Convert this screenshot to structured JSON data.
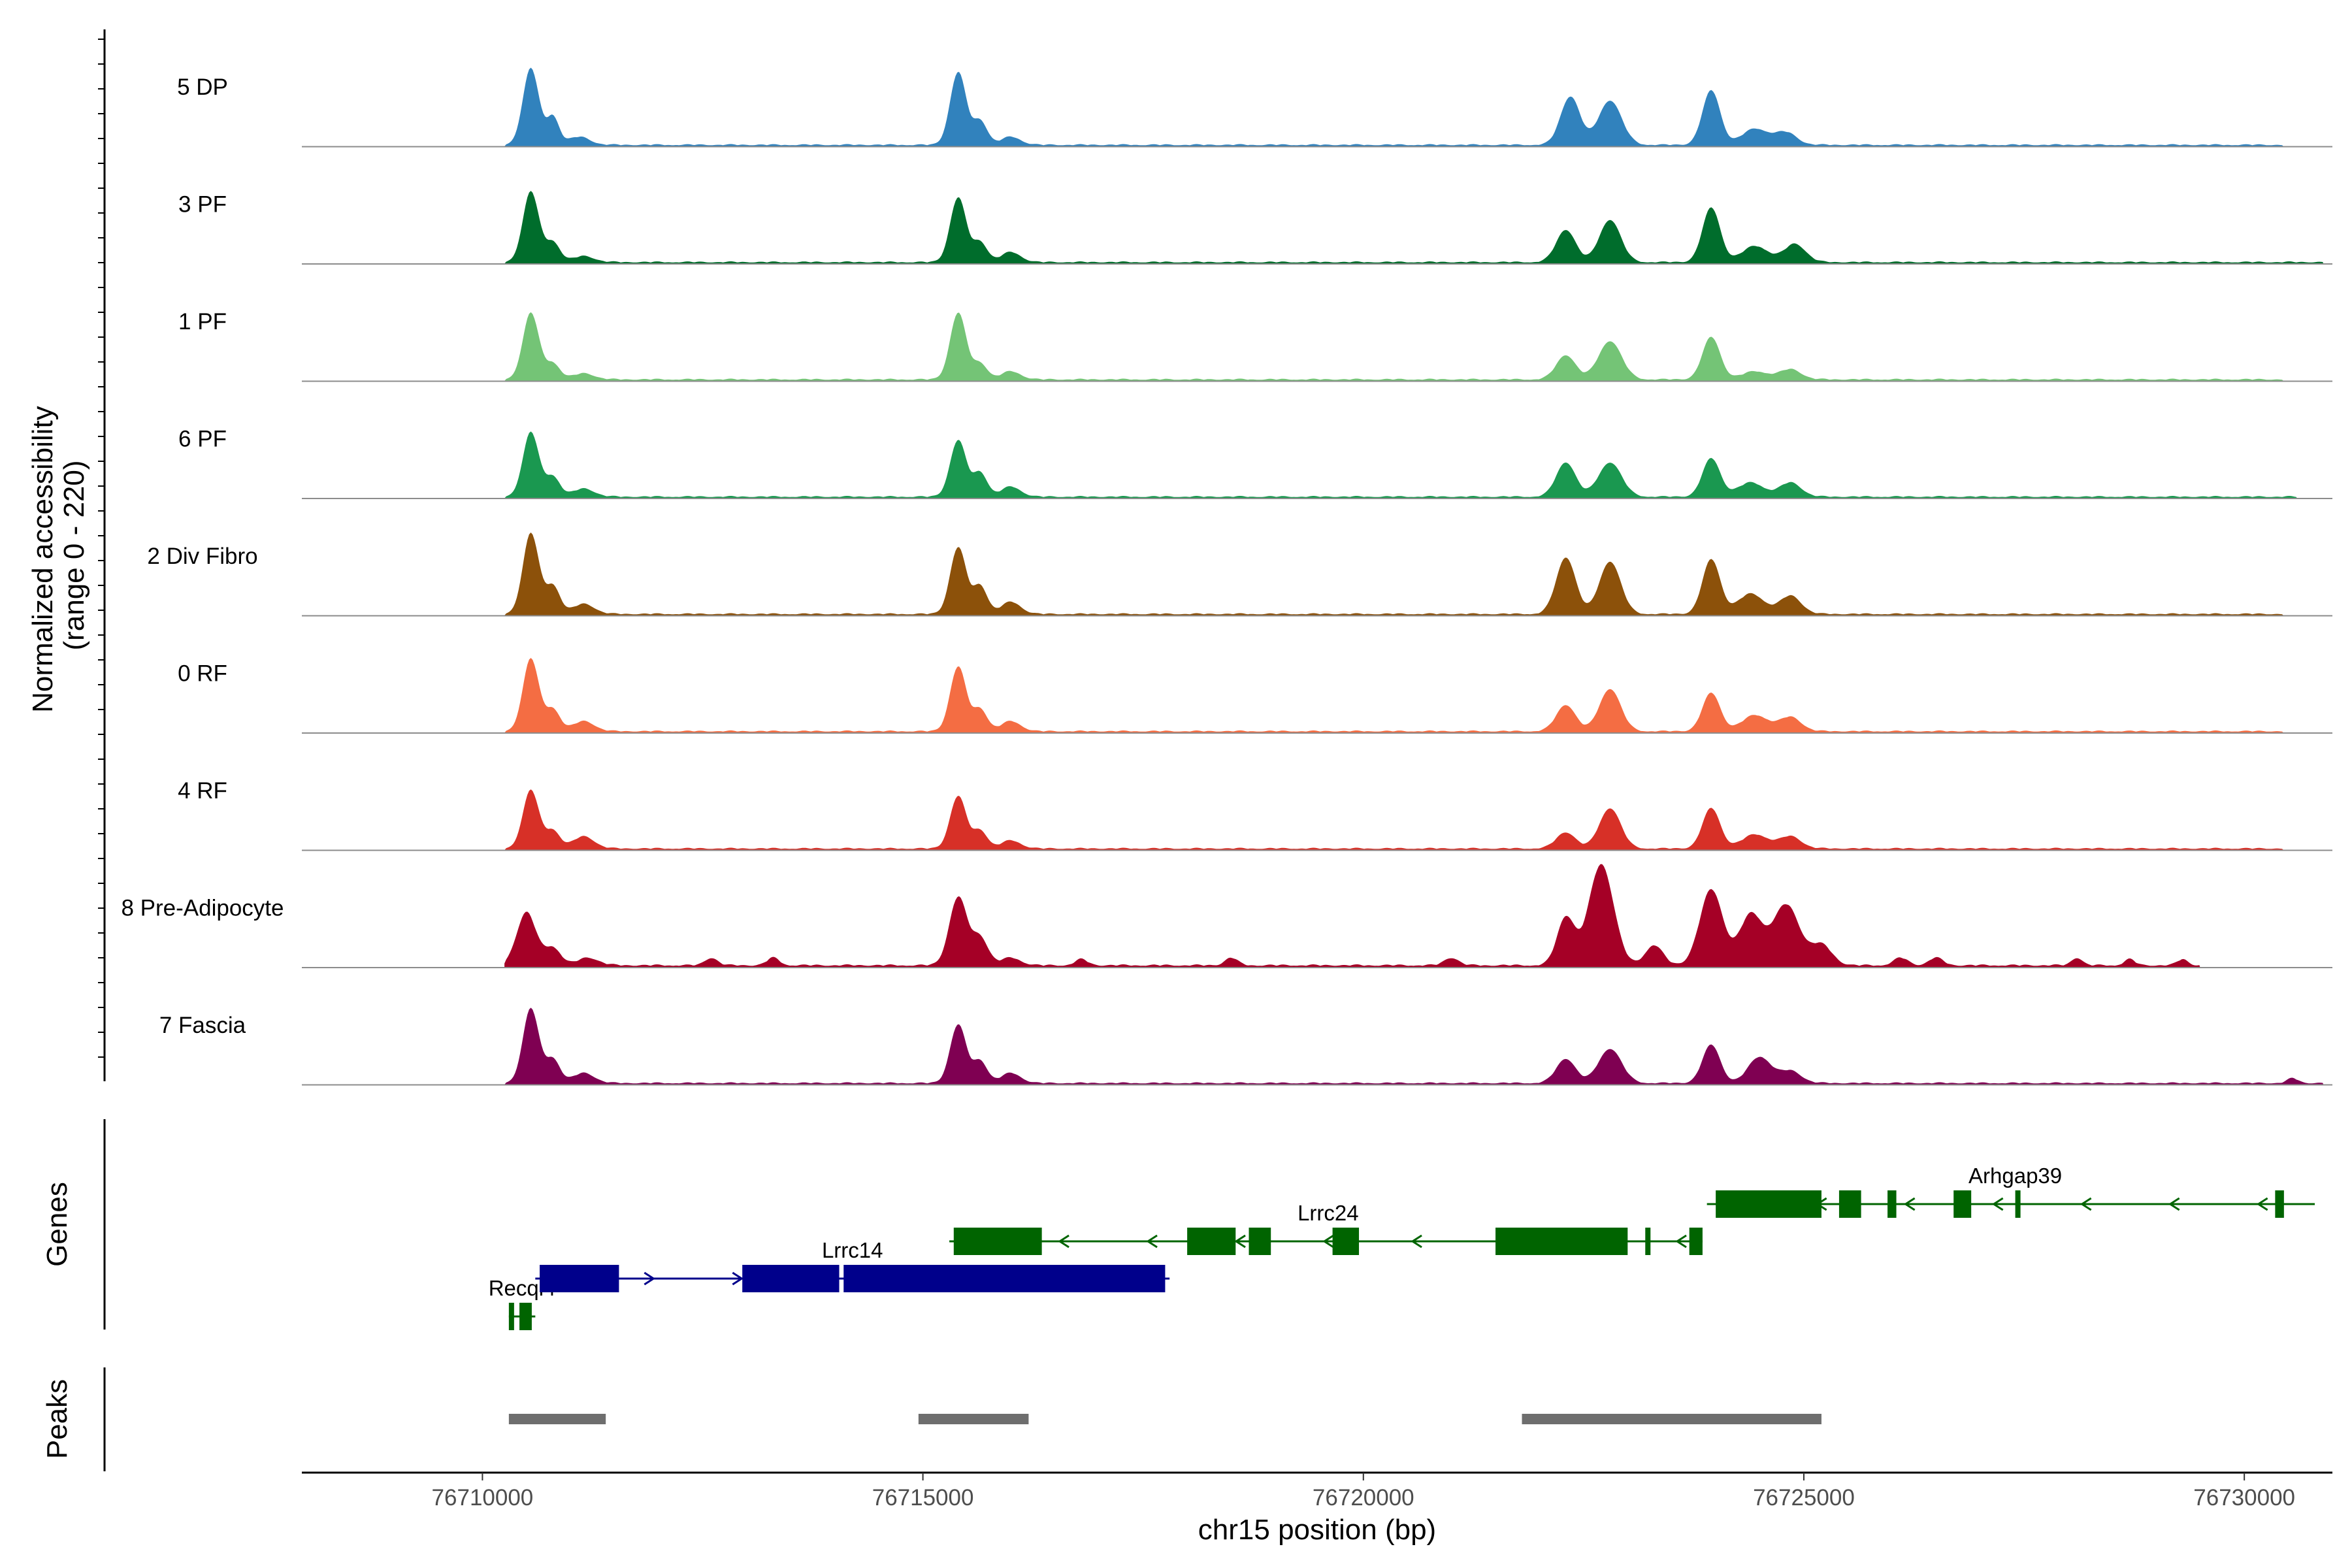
{
  "chart_data": {
    "type": "area",
    "title": "",
    "y_axis_title_line1": "Normalized accessibility",
    "y_axis_title_line2": "(range 0 - 220)",
    "ylim": [
      0,
      220
    ],
    "x_axis_title": "chr15 position (bp)",
    "xlim": [
      76707950,
      76731000
    ],
    "x_ticks": [
      {
        "value": 76710000,
        "label": "76710000"
      },
      {
        "value": 76715000,
        "label": "76715000"
      },
      {
        "value": 76720000,
        "label": "76720000"
      },
      {
        "value": 76725000,
        "label": "76725000"
      },
      {
        "value": 76730000,
        "label": "76730000"
      }
    ],
    "genes_panel_title": "Genes",
    "peaks_panel_title": "Peaks",
    "series": [
      {
        "name": "5 DP",
        "color": "#3182BD",
        "sc": 1.0,
        "end": 76730450,
        "peaks": [
          [
            76710550,
            190,
            90
          ],
          [
            76710800,
            70,
            70
          ],
          [
            76711100,
            20,
            120
          ],
          [
            76715400,
            180,
            90
          ],
          [
            76715650,
            60,
            80
          ],
          [
            76716000,
            20,
            110
          ],
          [
            76722350,
            120,
            110
          ],
          [
            76722800,
            110,
            130
          ],
          [
            76723950,
            135,
            100
          ],
          [
            76724450,
            40,
            150
          ],
          [
            76724800,
            30,
            120
          ]
        ]
      },
      {
        "name": "3 PF",
        "color": "#006D2C",
        "sc": 1.0,
        "end": 76730900,
        "peaks": [
          [
            76710550,
            175,
            90
          ],
          [
            76710800,
            50,
            80
          ],
          [
            76711150,
            15,
            120
          ],
          [
            76715400,
            160,
            90
          ],
          [
            76715650,
            50,
            80
          ],
          [
            76716000,
            25,
            110
          ],
          [
            76722300,
            80,
            110
          ],
          [
            76722800,
            105,
            120
          ],
          [
            76723950,
            135,
            100
          ],
          [
            76724450,
            40,
            150
          ],
          [
            76724900,
            45,
            120
          ]
        ]
      },
      {
        "name": "1 PF",
        "color": "#74C476",
        "sc": 1.0,
        "end": 76730450,
        "peaks": [
          [
            76710550,
            165,
            90
          ],
          [
            76710800,
            40,
            80
          ],
          [
            76711150,
            15,
            120
          ],
          [
            76715400,
            165,
            90
          ],
          [
            76715650,
            40,
            80
          ],
          [
            76716000,
            20,
            110
          ],
          [
            76722300,
            60,
            110
          ],
          [
            76722800,
            95,
            130
          ],
          [
            76723950,
            105,
            100
          ],
          [
            76724450,
            20,
            150
          ],
          [
            76724850,
            25,
            120
          ]
        ]
      },
      {
        "name": "6 PF",
        "color": "#1A9850",
        "sc": 1.0,
        "end": 76730600,
        "peaks": [
          [
            76710550,
            160,
            90
          ],
          [
            76710800,
            50,
            80
          ],
          [
            76711150,
            20,
            120
          ],
          [
            76715400,
            140,
            90
          ],
          [
            76715650,
            60,
            80
          ],
          [
            76716000,
            25,
            110
          ],
          [
            76722300,
            85,
            110
          ],
          [
            76722800,
            85,
            130
          ],
          [
            76723950,
            95,
            100
          ],
          [
            76724400,
            35,
            150
          ],
          [
            76724850,
            35,
            120
          ]
        ]
      },
      {
        "name": "2 Div Fibro",
        "color": "#8C510A",
        "sc": 1.0,
        "end": 76730450,
        "peaks": [
          [
            76710550,
            200,
            90
          ],
          [
            76710800,
            70,
            80
          ],
          [
            76711150,
            25,
            120
          ],
          [
            76715400,
            165,
            90
          ],
          [
            76715650,
            70,
            80
          ],
          [
            76716000,
            30,
            110
          ],
          [
            76722300,
            140,
            110
          ],
          [
            76722800,
            130,
            120
          ],
          [
            76723950,
            135,
            100
          ],
          [
            76724400,
            50,
            150
          ],
          [
            76724850,
            45,
            120
          ]
        ]
      },
      {
        "name": "0 RF",
        "color": "#F46D43",
        "sc": 1.0,
        "end": 76730450,
        "peaks": [
          [
            76710550,
            180,
            90
          ],
          [
            76710800,
            55,
            80
          ],
          [
            76711150,
            25,
            120
          ],
          [
            76715400,
            160,
            90
          ],
          [
            76715650,
            55,
            80
          ],
          [
            76716000,
            25,
            110
          ],
          [
            76722300,
            65,
            110
          ],
          [
            76722800,
            105,
            120
          ],
          [
            76723950,
            95,
            100
          ],
          [
            76724450,
            40,
            150
          ],
          [
            76724850,
            35,
            120
          ]
        ]
      },
      {
        "name": "4 RF",
        "color": "#D73027",
        "sc": 1.0,
        "end": 76730450,
        "peaks": [
          [
            76710550,
            145,
            90
          ],
          [
            76710800,
            45,
            80
          ],
          [
            76711150,
            30,
            120
          ],
          [
            76715400,
            130,
            90
          ],
          [
            76715650,
            45,
            80
          ],
          [
            76716000,
            20,
            110
          ],
          [
            76722300,
            40,
            110
          ],
          [
            76722800,
            100,
            120
          ],
          [
            76723950,
            100,
            100
          ],
          [
            76724450,
            35,
            150
          ],
          [
            76724850,
            30,
            120
          ]
        ]
      },
      {
        "name": "8 Pre-Adipocyte",
        "color": "#A50026",
        "sc": 1.25,
        "end": 76729500,
        "peaks": [
          [
            76710500,
            105,
            110
          ],
          [
            76710800,
            35,
            90
          ],
          [
            76711200,
            15,
            120
          ],
          [
            76715400,
            135,
            100
          ],
          [
            76715650,
            55,
            90
          ],
          [
            76716000,
            15,
            110
          ],
          [
            76722300,
            95,
            100
          ],
          [
            76722700,
            200,
            140
          ],
          [
            76723300,
            40,
            100
          ],
          [
            76723950,
            150,
            130
          ],
          [
            76724400,
            100,
            130
          ],
          [
            76724800,
            120,
            150
          ],
          [
            76725200,
            40,
            120
          ],
          [
            76712600,
            15,
            70
          ],
          [
            76713300,
            15,
            70
          ],
          [
            76716800,
            12,
            70
          ],
          [
            76718500,
            15,
            70
          ],
          [
            76721000,
            15,
            80
          ],
          [
            76726100,
            15,
            80
          ],
          [
            76726500,
            15,
            80
          ],
          [
            76728100,
            15,
            60
          ],
          [
            76728700,
            12,
            60
          ],
          [
            76729300,
            12,
            60
          ]
        ]
      },
      {
        "name": "7 Fascia",
        "color": "#7F0052",
        "sc": 1.0,
        "end": 76730900,
        "peaks": [
          [
            76710550,
            185,
            90
          ],
          [
            76710800,
            60,
            80
          ],
          [
            76711150,
            25,
            120
          ],
          [
            76715400,
            145,
            90
          ],
          [
            76715650,
            55,
            80
          ],
          [
            76716000,
            25,
            110
          ],
          [
            76722300,
            60,
            110
          ],
          [
            76722800,
            85,
            130
          ],
          [
            76723950,
            95,
            100
          ],
          [
            76724500,
            65,
            130
          ],
          [
            76724850,
            30,
            120
          ],
          [
            76730550,
            12,
            60
          ]
        ]
      }
    ],
    "genes": [
      {
        "name": "Recql4",
        "strand": "-",
        "color": "#006400",
        "row": 3,
        "start": 76710300,
        "end": 76710600,
        "exons": [
          [
            76710300,
            76710330
          ],
          [
            76710420,
            76710560
          ]
        ],
        "label_pos": 76710450
      },
      {
        "name": "Lrrc14",
        "strand": "+",
        "color": "#00008B",
        "row": 2,
        "start": 76710600,
        "end": 76717800,
        "exons": [
          [
            76710650,
            76711550
          ],
          [
            76712950,
            76714050
          ],
          [
            76714100,
            76717750
          ]
        ],
        "label_pos": 76714200
      },
      {
        "name": "Lrrc24",
        "strand": "-",
        "color": "#006400",
        "row": 1,
        "start": 76715300,
        "end": 76723850,
        "exons": [
          [
            76715350,
            76716350
          ],
          [
            76718000,
            76718550
          ],
          [
            76718700,
            76718950
          ],
          [
            76719650,
            76719950
          ],
          [
            76721500,
            76723000
          ],
          [
            76723200,
            76723230
          ],
          [
            76723700,
            76723850
          ]
        ],
        "label_pos": 76719600
      },
      {
        "name": "Arhgap39",
        "strand": "-",
        "color": "#006400",
        "row": 0,
        "start": 76723900,
        "end": 76730800,
        "exons": [
          [
            76724000,
            76725200
          ],
          [
            76725400,
            76725650
          ],
          [
            76725950,
            76726050
          ],
          [
            76726700,
            76726900
          ],
          [
            76727400,
            76727450
          ],
          [
            76730350,
            76730450
          ]
        ],
        "label_pos": 76727400
      }
    ],
    "peak_regions": [
      {
        "start": 76710300,
        "end": 76711400
      },
      {
        "start": 76714950,
        "end": 76716200
      },
      {
        "start": 76721800,
        "end": 76725200
      }
    ]
  }
}
